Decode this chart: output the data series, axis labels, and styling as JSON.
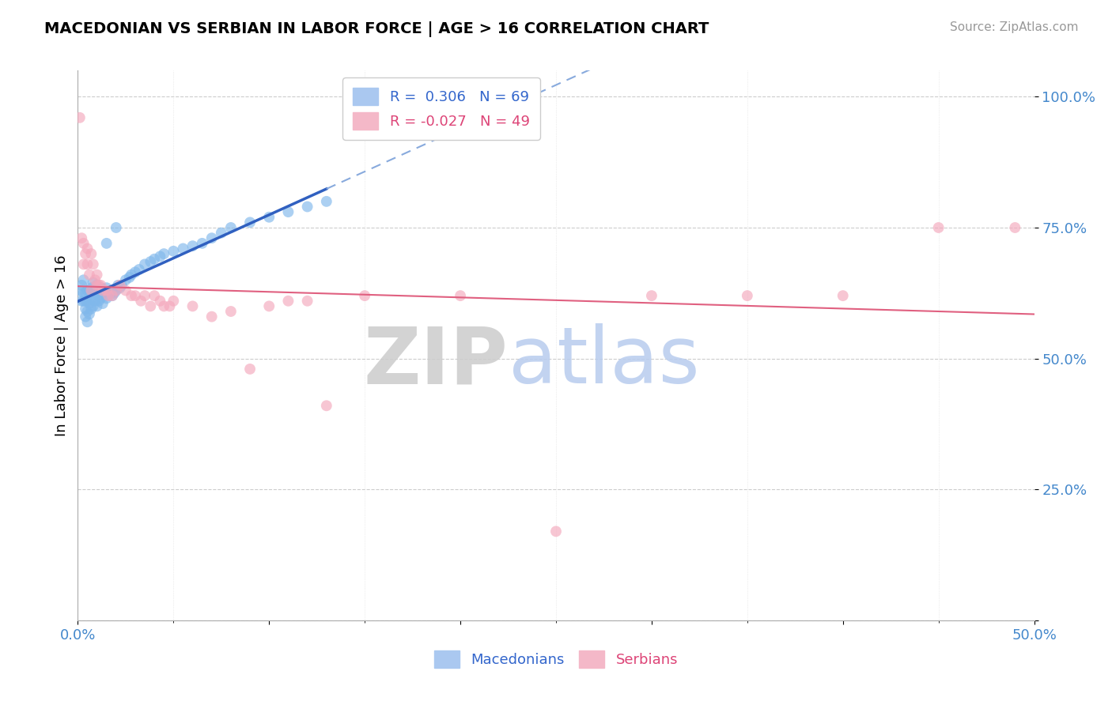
{
  "title": "MACEDONIAN VS SERBIAN IN LABOR FORCE | AGE > 16 CORRELATION CHART",
  "source_text": "Source: ZipAtlas.com",
  "ylabel": "In Labor Force | Age > 16",
  "xlim": [
    0.0,
    0.5
  ],
  "ylim": [
    0.0,
    1.05
  ],
  "legend_blue_r": "0.306",
  "legend_blue_n": "69",
  "legend_pink_r": "-0.027",
  "legend_pink_n": "49",
  "macedonian_color": "#80b8eb",
  "serbian_color": "#f4a8bc",
  "blue_line_color": "#3060c0",
  "blue_dash_color": "#88aadd",
  "pink_line_color": "#e06080",
  "watermark_zip_color": "#cccccc",
  "watermark_atlas_color": "#b8ccee",
  "mac_x": [
    0.001,
    0.002,
    0.002,
    0.003,
    0.003,
    0.003,
    0.004,
    0.004,
    0.004,
    0.004,
    0.005,
    0.005,
    0.005,
    0.005,
    0.006,
    0.006,
    0.006,
    0.007,
    0.007,
    0.007,
    0.008,
    0.008,
    0.008,
    0.009,
    0.009,
    0.01,
    0.01,
    0.01,
    0.011,
    0.011,
    0.012,
    0.012,
    0.013,
    0.013,
    0.014,
    0.015,
    0.015,
    0.016,
    0.017,
    0.018,
    0.019,
    0.02,
    0.021,
    0.022,
    0.023,
    0.025,
    0.027,
    0.028,
    0.03,
    0.032,
    0.035,
    0.038,
    0.04,
    0.043,
    0.045,
    0.05,
    0.055,
    0.06,
    0.065,
    0.07,
    0.075,
    0.08,
    0.09,
    0.1,
    0.11,
    0.12,
    0.13,
    0.015,
    0.02
  ],
  "mac_y": [
    0.63,
    0.64,
    0.61,
    0.65,
    0.625,
    0.61,
    0.625,
    0.61,
    0.595,
    0.58,
    0.63,
    0.61,
    0.59,
    0.57,
    0.625,
    0.605,
    0.585,
    0.635,
    0.615,
    0.595,
    0.645,
    0.625,
    0.6,
    0.63,
    0.61,
    0.64,
    0.62,
    0.6,
    0.63,
    0.61,
    0.635,
    0.615,
    0.625,
    0.605,
    0.63,
    0.635,
    0.615,
    0.62,
    0.625,
    0.62,
    0.625,
    0.63,
    0.64,
    0.635,
    0.64,
    0.65,
    0.655,
    0.66,
    0.665,
    0.67,
    0.68,
    0.685,
    0.69,
    0.695,
    0.7,
    0.705,
    0.71,
    0.715,
    0.72,
    0.73,
    0.74,
    0.75,
    0.76,
    0.77,
    0.78,
    0.79,
    0.8,
    0.72,
    0.75
  ],
  "serb_x": [
    0.001,
    0.002,
    0.003,
    0.003,
    0.004,
    0.005,
    0.005,
    0.006,
    0.007,
    0.007,
    0.008,
    0.009,
    0.01,
    0.01,
    0.011,
    0.012,
    0.013,
    0.015,
    0.016,
    0.018,
    0.02,
    0.022,
    0.025,
    0.028,
    0.03,
    0.033,
    0.035,
    0.038,
    0.04,
    0.043,
    0.045,
    0.048,
    0.05,
    0.06,
    0.07,
    0.08,
    0.09,
    0.1,
    0.11,
    0.12,
    0.13,
    0.15,
    0.2,
    0.25,
    0.3,
    0.35,
    0.4,
    0.45,
    0.49
  ],
  "serb_y": [
    0.96,
    0.73,
    0.68,
    0.72,
    0.7,
    0.71,
    0.68,
    0.66,
    0.7,
    0.63,
    0.68,
    0.65,
    0.66,
    0.64,
    0.64,
    0.64,
    0.63,
    0.63,
    0.62,
    0.62,
    0.63,
    0.64,
    0.63,
    0.62,
    0.62,
    0.61,
    0.62,
    0.6,
    0.62,
    0.61,
    0.6,
    0.6,
    0.61,
    0.6,
    0.58,
    0.59,
    0.48,
    0.6,
    0.61,
    0.61,
    0.41,
    0.62,
    0.62,
    0.17,
    0.62,
    0.62,
    0.62,
    0.75,
    0.75
  ]
}
